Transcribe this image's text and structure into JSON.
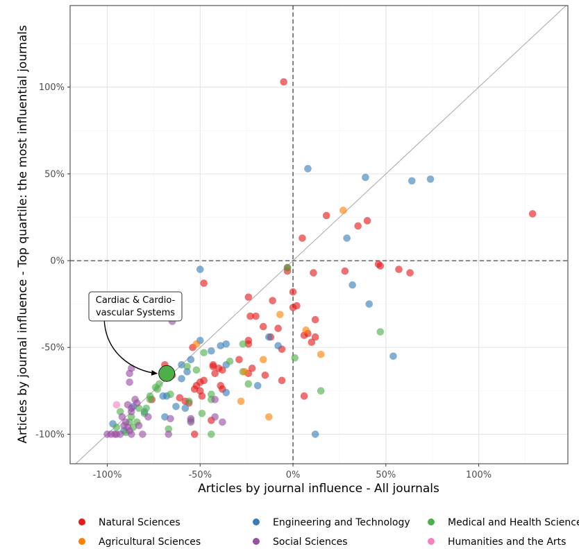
{
  "chart_data": {
    "type": "scatter",
    "xlabel": "Articles by journal influence - All journals",
    "ylabel": "Articles by journal influence - Top quartile: the most influential journals",
    "xlim": [
      -1.2,
      1.48
    ],
    "ylim": [
      -1.17,
      1.47
    ],
    "x_ticks": [
      -1.0,
      -0.5,
      0.0,
      0.5,
      1.0
    ],
    "y_ticks": [
      -1.0,
      -0.5,
      0.0,
      0.5,
      1.0
    ],
    "x_tick_labels": [
      "-100%",
      "-50%",
      "0%",
      "50%",
      "100%"
    ],
    "y_tick_labels": [
      "-100%",
      "-50%",
      "0%",
      "50%",
      "100%"
    ],
    "grid": true,
    "reference_lines": {
      "diagonal": "y = x",
      "vertical_dashed": 0,
      "horizontal_dashed": 0
    },
    "legend_position": "bottom",
    "annotation": {
      "lines": [
        "Cardiac & Cardio-",
        "vascular Systems"
      ],
      "x": -0.68,
      "y": -0.65,
      "color": "#4daf4a"
    },
    "series": [
      {
        "name": "Natural Sciences",
        "color": "#e41a1c",
        "points": [
          [
            -0.05,
            1.03
          ],
          [
            0.18,
            0.26
          ],
          [
            0.35,
            0.2
          ],
          [
            0.4,
            0.23
          ],
          [
            0.05,
            0.13
          ],
          [
            1.29,
            0.27
          ],
          [
            0.46,
            -0.02
          ],
          [
            0.47,
            -0.03
          ],
          [
            0.57,
            -0.05
          ],
          [
            0.63,
            -0.07
          ],
          [
            0.28,
            -0.06
          ],
          [
            0.11,
            -0.07
          ],
          [
            -0.03,
            -0.06
          ],
          [
            -0.03,
            -0.04
          ],
          [
            -0.48,
            -0.13
          ],
          [
            -0.24,
            -0.21
          ],
          [
            -0.11,
            -0.23
          ],
          [
            0.0,
            -0.18
          ],
          [
            0.0,
            -0.27
          ],
          [
            0.02,
            -0.26
          ],
          [
            -0.23,
            -0.32
          ],
          [
            -0.2,
            -0.32
          ],
          [
            -0.16,
            -0.38
          ],
          [
            -0.08,
            -0.39
          ],
          [
            0.12,
            -0.34
          ],
          [
            0.08,
            -0.42
          ],
          [
            0.06,
            -0.43
          ],
          [
            0.12,
            -0.44
          ],
          [
            -0.12,
            -0.44
          ],
          [
            -0.24,
            -0.46
          ],
          [
            -0.24,
            -0.48
          ],
          [
            -0.54,
            -0.5
          ],
          [
            -0.43,
            -0.6
          ],
          [
            -0.4,
            -0.62
          ],
          [
            -0.43,
            -0.61
          ],
          [
            -0.42,
            -0.65
          ],
          [
            -0.38,
            -0.63
          ],
          [
            -0.29,
            -0.57
          ],
          [
            -0.22,
            -0.62
          ],
          [
            -0.24,
            -0.65
          ],
          [
            -0.15,
            -0.66
          ],
          [
            -0.06,
            -0.51
          ],
          [
            -0.06,
            -0.69
          ],
          [
            -0.5,
            -0.7
          ],
          [
            -0.48,
            -0.69
          ],
          [
            -0.52,
            -0.72
          ],
          [
            -0.53,
            -0.74
          ],
          [
            -0.5,
            -0.75
          ],
          [
            -0.49,
            -0.78
          ],
          [
            -0.61,
            -0.79
          ],
          [
            -0.58,
            -0.81
          ],
          [
            -0.56,
            -0.82
          ],
          [
            -0.44,
            -0.92
          ],
          [
            -0.53,
            -1.0
          ],
          [
            -0.39,
            -0.72
          ],
          [
            -0.38,
            -0.74
          ],
          [
            -0.69,
            -0.6
          ],
          [
            -0.65,
            -0.66
          ],
          [
            -0.7,
            -0.64
          ],
          [
            0.06,
            -0.78
          ],
          [
            0.1,
            -0.47
          ],
          [
            -0.76,
            -0.8
          ]
        ]
      },
      {
        "name": "Engineering and Technology",
        "color": "#377eb8",
        "points": [
          [
            0.08,
            0.53
          ],
          [
            0.39,
            0.48
          ],
          [
            0.64,
            0.46
          ],
          [
            0.74,
            0.47
          ],
          [
            0.29,
            0.13
          ],
          [
            0.32,
            -0.14
          ],
          [
            0.41,
            -0.25
          ],
          [
            0.54,
            -0.55
          ],
          [
            -0.5,
            -0.05
          ],
          [
            -0.5,
            -0.46
          ],
          [
            -0.44,
            -0.52
          ],
          [
            -0.39,
            -0.49
          ],
          [
            -0.36,
            -0.48
          ],
          [
            -0.13,
            -0.44
          ],
          [
            -0.08,
            -0.49
          ],
          [
            -0.19,
            -0.72
          ],
          [
            -0.36,
            -0.6
          ],
          [
            -0.36,
            -0.76
          ],
          [
            -0.55,
            -0.57
          ],
          [
            -0.57,
            -0.64
          ],
          [
            -0.6,
            -0.6
          ],
          [
            -0.6,
            -0.68
          ],
          [
            -0.63,
            -0.84
          ],
          [
            -0.68,
            -0.78
          ],
          [
            -0.7,
            -0.78
          ],
          [
            -0.58,
            -0.85
          ],
          [
            -0.69,
            -0.9
          ],
          [
            0.12,
            -1.0
          ],
          [
            -0.97,
            -0.94
          ],
          [
            -0.86,
            -0.84
          ],
          [
            -0.8,
            -0.87
          ],
          [
            -0.91,
            -0.98
          ]
        ]
      },
      {
        "name": "Medical and Health Sciences",
        "color": "#4daf4a",
        "points": [
          [
            -0.03,
            -0.04
          ],
          [
            0.47,
            -0.41
          ],
          [
            0.15,
            -0.75
          ],
          [
            0.01,
            -0.56
          ],
          [
            -0.27,
            -0.48
          ],
          [
            -0.34,
            -0.58
          ],
          [
            -0.48,
            -0.53
          ],
          [
            -0.57,
            -0.61
          ],
          [
            -0.44,
            -0.77
          ],
          [
            -0.44,
            -0.8
          ],
          [
            -0.24,
            -0.71
          ],
          [
            -0.27,
            -0.64
          ],
          [
            -0.52,
            -0.63
          ],
          [
            -0.56,
            -0.81
          ],
          [
            -0.55,
            -0.92
          ],
          [
            -0.49,
            -0.88
          ],
          [
            -0.44,
            -1.0
          ],
          [
            -0.67,
            -0.97
          ],
          [
            -0.72,
            -0.71
          ],
          [
            -0.73,
            -0.74
          ],
          [
            -0.74,
            -0.73
          ],
          [
            -0.77,
            -0.8
          ],
          [
            -0.77,
            -0.78
          ],
          [
            -0.79,
            -0.85
          ],
          [
            -0.8,
            -0.88
          ],
          [
            -0.83,
            -0.85
          ],
          [
            -0.84,
            -0.93
          ],
          [
            -0.86,
            -0.96
          ],
          [
            -0.87,
            -0.9
          ],
          [
            -0.88,
            -0.93
          ],
          [
            -0.9,
            -0.99
          ],
          [
            -0.93,
            -0.87
          ],
          [
            -0.95,
            -0.96
          ],
          [
            -0.66,
            -0.77
          ]
        ]
      },
      {
        "name": "Agricultural Sciences",
        "color": "#ff7f00",
        "points": [
          [
            0.27,
            0.29
          ],
          [
            0.07,
            -0.4
          ],
          [
            -0.07,
            -0.31
          ],
          [
            0.15,
            -0.54
          ],
          [
            -0.16,
            -0.57
          ],
          [
            -0.26,
            -0.64
          ],
          [
            -0.28,
            -0.81
          ],
          [
            -0.13,
            -0.9
          ],
          [
            -0.52,
            -0.48
          ]
        ]
      },
      {
        "name": "Social Sciences",
        "color": "#984ea3",
        "points": [
          [
            -0.65,
            -0.35
          ],
          [
            -0.38,
            -0.93
          ],
          [
            -0.42,
            -0.8
          ],
          [
            -0.42,
            -0.9
          ],
          [
            -0.55,
            -0.91
          ],
          [
            -0.55,
            -0.93
          ],
          [
            -0.66,
            -0.91
          ],
          [
            -0.67,
            -1.0
          ],
          [
            -0.81,
            -1.0
          ],
          [
            -0.84,
            -0.82
          ],
          [
            -0.85,
            -0.8
          ],
          [
            -0.87,
            -0.85
          ],
          [
            -0.87,
            -0.87
          ],
          [
            -0.88,
            -0.7
          ],
          [
            -0.88,
            -0.65
          ],
          [
            -0.87,
            -0.62
          ],
          [
            -0.89,
            -0.83
          ],
          [
            -0.9,
            -0.93
          ],
          [
            -0.91,
            -0.95
          ],
          [
            -0.92,
            -0.9
          ],
          [
            -0.93,
            -1.0
          ],
          [
            -0.95,
            -1.0
          ],
          [
            -0.96,
            -1.0
          ],
          [
            -0.98,
            -1.0
          ],
          [
            -1.0,
            -1.0
          ],
          [
            -0.89,
            -0.96
          ],
          [
            -0.88,
            -0.98
          ],
          [
            -0.87,
            -1.0
          ],
          [
            -0.78,
            -0.9
          ],
          [
            -0.83,
            -0.95
          ]
        ]
      },
      {
        "name": "Humanities and the Arts",
        "color": "#f781bf",
        "points": [
          [
            -0.95,
            -0.83
          ]
        ]
      }
    ]
  }
}
